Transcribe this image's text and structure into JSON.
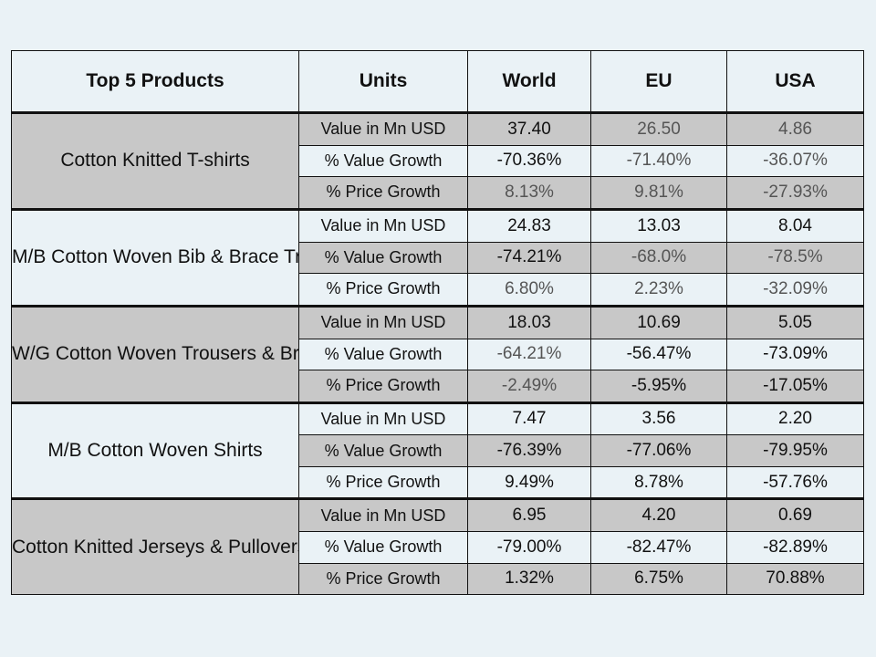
{
  "headers": {
    "product": "Top 5 Products",
    "units": "Units",
    "world": "World",
    "eu": "EU",
    "usa": "USA"
  },
  "groups": [
    {
      "product": "Cotton Knitted  T-shirts",
      "rows": [
        {
          "unit": "Value in Mn USD",
          "world": "37.40",
          "eu": "26.50",
          "usa": "4.86"
        },
        {
          "unit": "% Value Growth",
          "world": "-70.36%",
          "eu": "-71.40%",
          "usa": "-36.07%"
        },
        {
          "unit": "% Price Growth",
          "world": "8.13%",
          "eu": "9.81%",
          "usa": "-27.93%"
        }
      ]
    },
    {
      "product": "M/B Cotton Woven Bib & Brace Trousers & Breeches",
      "rows": [
        {
          "unit": "Value in Mn USD",
          "world": "24.83",
          "eu": "13.03",
          "usa": "8.04"
        },
        {
          "unit": "% Value Growth",
          "world": "-74.21%",
          "eu": "-68.0%",
          "usa": "-78.5%"
        },
        {
          "unit": "% Price Growth",
          "world": "6.80%",
          "eu": "2.23%",
          "usa": "-32.09%"
        }
      ]
    },
    {
      "product": "W/G Cotton Woven  Trousers & Breeches",
      "rows": [
        {
          "unit": "Value in Mn USD",
          "world": "18.03",
          "eu": "10.69",
          "usa": "5.05"
        },
        {
          "unit": "% Value Growth",
          "world": "-64.21%",
          "eu": "-56.47%",
          "usa": "-73.09%"
        },
        {
          "unit": "% Price Growth",
          "world": "-2.49%",
          "eu": "-5.95%",
          "usa": "-17.05%"
        }
      ]
    },
    {
      "product": "M/B Cotton Woven  Shirts",
      "rows": [
        {
          "unit": "Value in Mn USD",
          "world": "7.47",
          "eu": "3.56",
          "usa": "2.20"
        },
        {
          "unit": "% Value Growth",
          "world": "-76.39%",
          "eu": "-77.06%",
          "usa": "-79.95%"
        },
        {
          "unit": "% Price Growth",
          "world": "9.49%",
          "eu": "8.78%",
          "usa": "-57.76%"
        }
      ]
    },
    {
      "product": "Cotton Knitted  Jerseys & Pullovers",
      "rows": [
        {
          "unit": "Value in Mn USD",
          "world": "6.95",
          "eu": "4.20",
          "usa": "0.69"
        },
        {
          "unit": "% Value Growth",
          "world": "-79.00%",
          "eu": "-82.47%",
          "usa": "-82.89%"
        },
        {
          "unit": "% Price Growth",
          "world": "1.32%",
          "eu": "6.75%",
          "usa": "70.88%"
        }
      ]
    }
  ],
  "colors": {
    "background": "#eaf2f6",
    "shade": "#c8c8c8",
    "border": "#111111"
  }
}
